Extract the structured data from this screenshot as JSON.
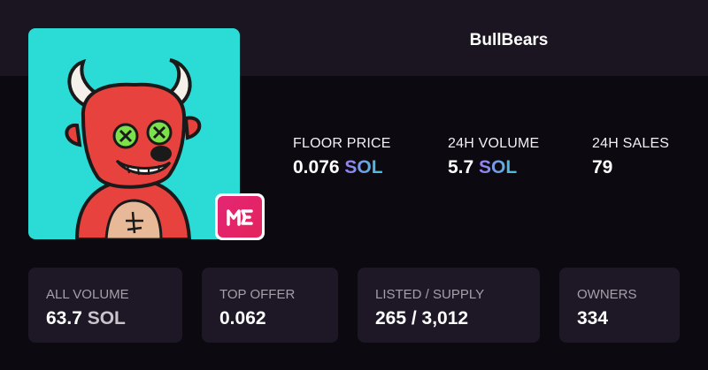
{
  "header": {
    "title": "BullBears"
  },
  "artwork": {
    "icon": "bull-character-image",
    "background": "#2bdbd6"
  },
  "badge": {
    "icon": "magic-eden-logo",
    "text": "ME",
    "color": "#e42575"
  },
  "stats": {
    "floor": {
      "label": "FLOOR PRICE",
      "value": "0.076",
      "unit": "SOL"
    },
    "volume24": {
      "label": "24H VOLUME",
      "value": "5.7",
      "unit": "SOL"
    },
    "sales24": {
      "label": "24H SALES",
      "value": "79"
    }
  },
  "cards": {
    "all_volume": {
      "label": "ALL VOLUME",
      "value": "63.7",
      "unit": "SOL"
    },
    "top_offer": {
      "label": "TOP OFFER",
      "value": "0.062"
    },
    "listed_supply": {
      "label": "LISTED / SUPPLY",
      "value": "265 / 3,012"
    },
    "owners": {
      "label": "OWNERS",
      "value": "334"
    }
  },
  "colors": {
    "page_bg": "#0c0910",
    "header_bg": "#1b1521",
    "card_bg": "#1e1826",
    "sol_gradient_start": "#9b7bf6",
    "sol_gradient_end": "#3fc7d6"
  }
}
